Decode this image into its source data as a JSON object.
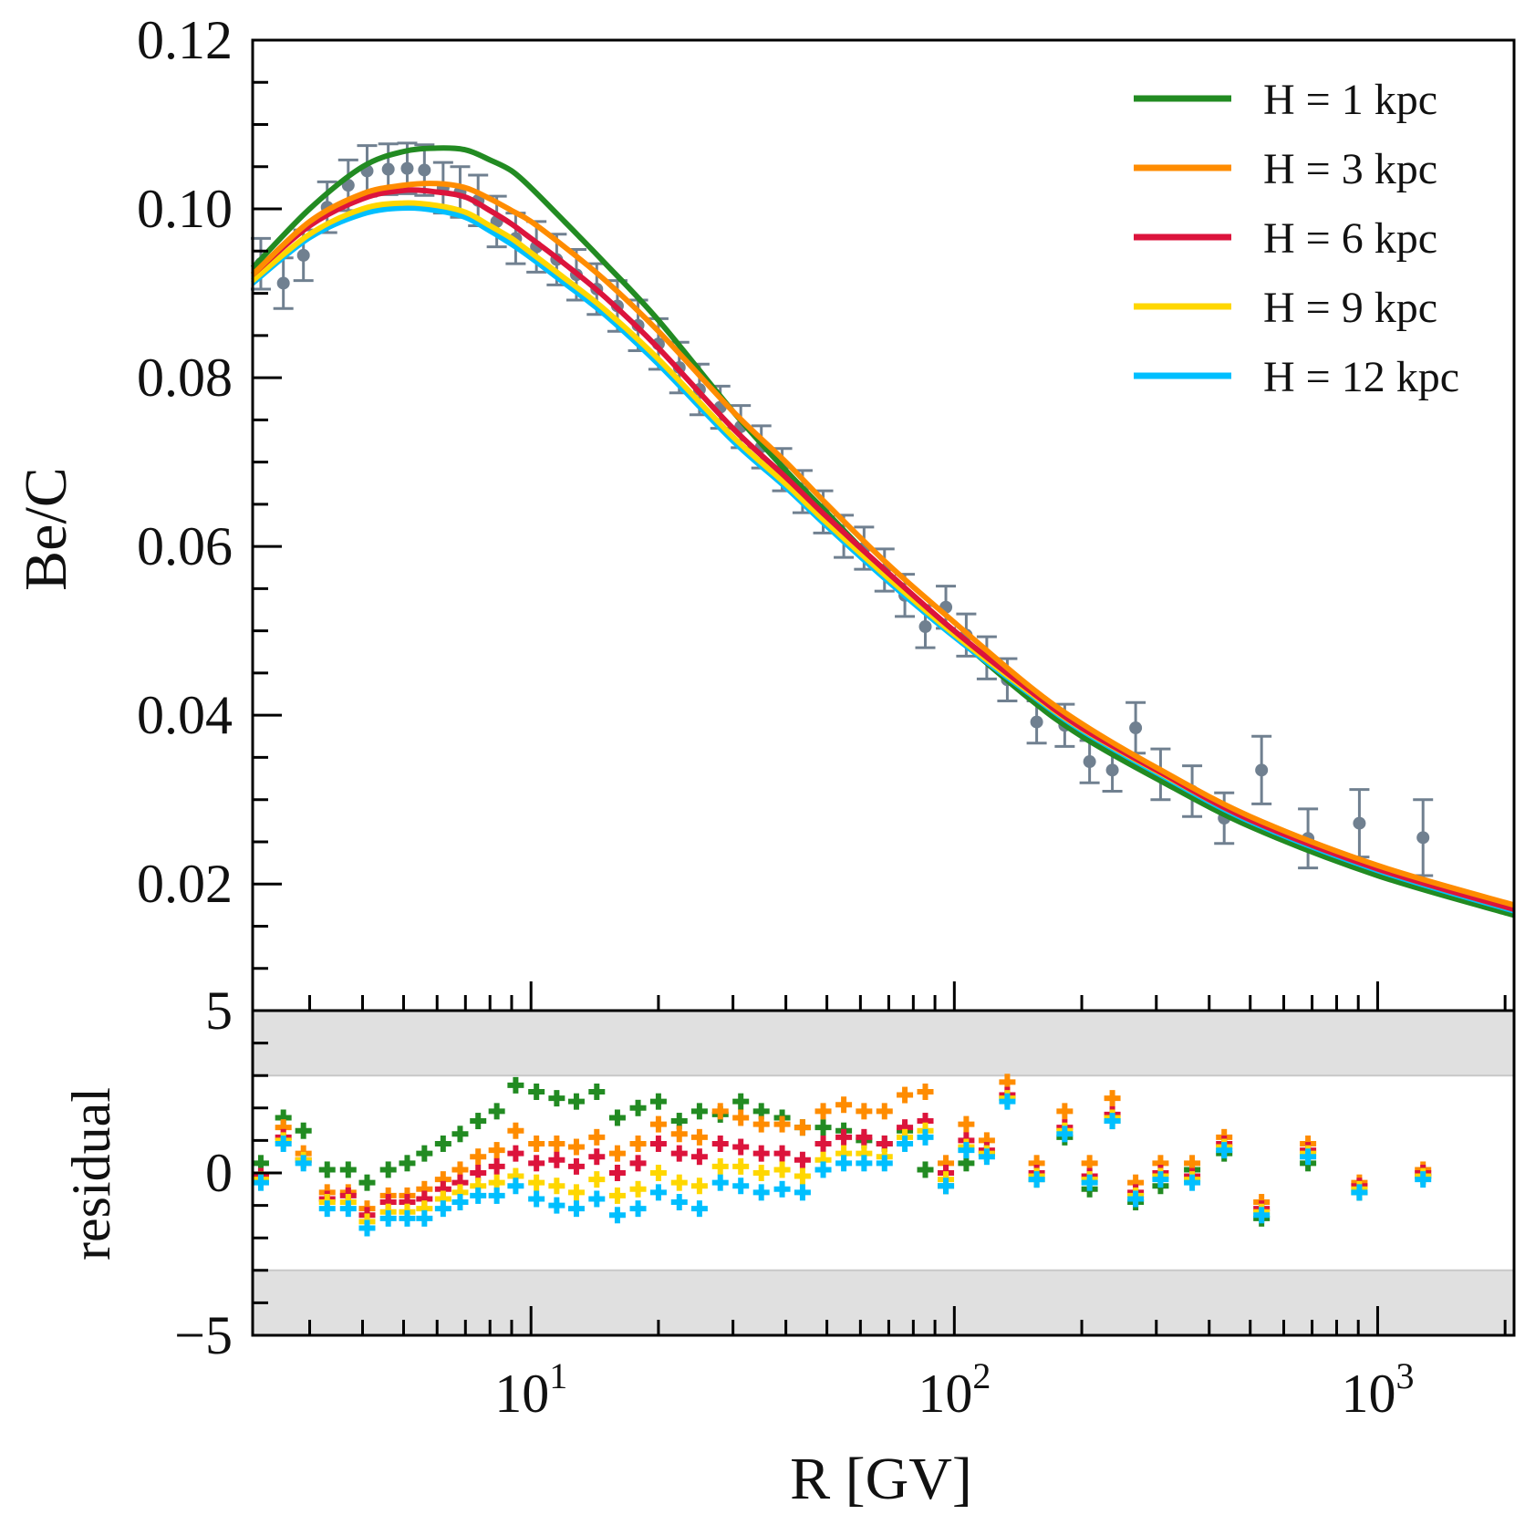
{
  "chart_data": {
    "type": "line",
    "x_scale": "log",
    "xlim": [
      2.2,
      2100
    ],
    "xlabel": "R [GV]",
    "x_tick_labels": [
      {
        "value": 10,
        "base": "10",
        "exp": "1"
      },
      {
        "value": 100,
        "base": "10",
        "exp": "2"
      },
      {
        "value": 1000,
        "base": "10",
        "exp": "3"
      }
    ],
    "top_panel": {
      "ylabel": "Be/C",
      "ylim": [
        0.005,
        0.12
      ],
      "y_tick_labels": [
        "0.02",
        "0.04",
        "0.06",
        "0.08",
        "0.10",
        "0.12"
      ],
      "y_tick_values": [
        0.02,
        0.04,
        0.06,
        0.08,
        0.1,
        0.12
      ],
      "data_color": "#708090",
      "data": {
        "x": [
          2.3,
          2.6,
          2.9,
          3.3,
          3.7,
          4.1,
          4.6,
          5.1,
          5.6,
          6.2,
          6.8,
          7.5,
          8.3,
          9.2,
          10.3,
          11.5,
          12.8,
          14.3,
          16.0,
          17.9,
          20.0,
          22.4,
          25.0,
          28.0,
          31.3,
          35.0,
          39.2,
          43.8,
          49.0,
          54.8,
          61.2,
          68.4,
          76.4,
          85.4,
          95.5,
          106.7,
          119.3,
          133.4,
          156.5,
          182.3,
          208.7,
          236.2,
          268.1,
          307.0,
          364.6,
          434.0,
          531.8,
          684.7,
          905.4,
          1280.0
        ],
        "y": [
          0.0935,
          0.0912,
          0.0945,
          0.1002,
          0.1028,
          0.1045,
          0.1047,
          0.1048,
          0.1046,
          0.1025,
          0.102,
          0.101,
          0.0985,
          0.0965,
          0.0955,
          0.094,
          0.0922,
          0.0905,
          0.0885,
          0.0862,
          0.084,
          0.0812,
          0.0786,
          0.0765,
          0.0742,
          0.0718,
          0.0691,
          0.0665,
          0.0641,
          0.0612,
          0.0598,
          0.0572,
          0.0542,
          0.0505,
          0.0528,
          0.0495,
          0.0468,
          0.0442,
          0.0392,
          0.0388,
          0.0345,
          0.0335,
          0.0385,
          0.033,
          0.031,
          0.0278,
          0.0335,
          0.0254,
          0.0272,
          0.0255
        ],
        "err": [
          0.003,
          0.003,
          0.003,
          0.003,
          0.003,
          0.003,
          0.003,
          0.003,
          0.003,
          0.003,
          0.003,
          0.003,
          0.003,
          0.003,
          0.003,
          0.003,
          0.003,
          0.003,
          0.003,
          0.003,
          0.003,
          0.003,
          0.003,
          0.0025,
          0.0025,
          0.0025,
          0.0025,
          0.0025,
          0.0025,
          0.0025,
          0.0025,
          0.0025,
          0.0025,
          0.0025,
          0.0025,
          0.0025,
          0.0025,
          0.0025,
          0.0025,
          0.0025,
          0.0025,
          0.0025,
          0.003,
          0.003,
          0.003,
          0.003,
          0.004,
          0.0035,
          0.004,
          0.0045
        ]
      },
      "legend_position": "top-right",
      "series": [
        {
          "name": "H = 1 kpc",
          "color": "#228b22",
          "x": [
            2.2,
            3.0,
            4.0,
            5.0,
            6.0,
            7.0,
            8.0,
            9.0,
            10.0,
            12.0,
            15.0,
            20.0,
            30.0,
            40.0,
            50.0,
            70.0,
            100.0,
            150.0,
            200.0,
            300.0,
            500.0,
            1000.0,
            2100.0
          ],
          "y": [
            0.093,
            0.1,
            0.105,
            0.1068,
            0.1072,
            0.107,
            0.1058,
            0.1045,
            0.1025,
            0.0985,
            0.0935,
            0.0868,
            0.076,
            0.069,
            0.064,
            0.0565,
            0.0495,
            0.042,
            0.0375,
            0.0325,
            0.0268,
            0.021,
            0.0163
          ]
        },
        {
          "name": "H = 3 kpc",
          "color": "#ff8c00",
          "x": [
            2.2,
            3.0,
            4.0,
            5.0,
            6.0,
            7.0,
            8.0,
            9.0,
            10.0,
            12.0,
            15.0,
            20.0,
            30.0,
            40.0,
            50.0,
            70.0,
            100.0,
            150.0,
            200.0,
            300.0,
            500.0,
            1000.0,
            2100.0
          ],
          "y": [
            0.0922,
            0.0985,
            0.1018,
            0.1028,
            0.103,
            0.1025,
            0.1012,
            0.0998,
            0.0985,
            0.0955,
            0.0915,
            0.0855,
            0.076,
            0.07,
            0.065,
            0.0578,
            0.051,
            0.0435,
            0.039,
            0.0338,
            0.028,
            0.0222,
            0.0175
          ]
        },
        {
          "name": "H = 6 kpc",
          "color": "#dc143c",
          "x": [
            2.2,
            3.0,
            4.0,
            5.0,
            6.0,
            7.0,
            8.0,
            9.0,
            10.0,
            12.0,
            15.0,
            20.0,
            30.0,
            40.0,
            50.0,
            70.0,
            100.0,
            150.0,
            200.0,
            300.0,
            500.0,
            1000.0,
            2100.0
          ],
          "y": [
            0.0922,
            0.098,
            0.1012,
            0.1022,
            0.102,
            0.1014,
            0.0998,
            0.0982,
            0.0965,
            0.0935,
            0.0895,
            0.0835,
            0.074,
            0.0682,
            0.0635,
            0.0568,
            0.05,
            0.043,
            0.0385,
            0.0335,
            0.0276,
            0.0218,
            0.017
          ]
        },
        {
          "name": "H = 9 kpc",
          "color": "#ffd700",
          "x": [
            2.2,
            3.0,
            4.0,
            5.0,
            6.0,
            7.0,
            8.0,
            9.0,
            10.0,
            12.0,
            15.0,
            20.0,
            30.0,
            40.0,
            50.0,
            70.0,
            100.0,
            150.0,
            200.0,
            300.0,
            500.0,
            1000.0,
            2100.0
          ],
          "y": [
            0.0915,
            0.097,
            0.1,
            0.1007,
            0.1004,
            0.0996,
            0.098,
            0.0965,
            0.0948,
            0.0918,
            0.088,
            0.0822,
            0.073,
            0.0674,
            0.0628,
            0.0562,
            0.0496,
            0.0428,
            0.0384,
            0.0334,
            0.0276,
            0.0218,
            0.017
          ]
        },
        {
          "name": "H = 12 kpc",
          "color": "#00bfff",
          "x": [
            2.2,
            3.0,
            4.0,
            5.0,
            6.0,
            7.0,
            8.0,
            9.0,
            10.0,
            12.0,
            15.0,
            20.0,
            30.0,
            40.0,
            50.0,
            70.0,
            100.0,
            150.0,
            200.0,
            300.0,
            500.0,
            1000.0,
            2100.0
          ],
          "y": [
            0.0912,
            0.0966,
            0.0994,
            0.1001,
            0.0998,
            0.099,
            0.0974,
            0.0958,
            0.0942,
            0.0912,
            0.0874,
            0.0816,
            0.0725,
            0.067,
            0.0624,
            0.0558,
            0.0493,
            0.0426,
            0.0382,
            0.0332,
            0.0274,
            0.0216,
            0.0168
          ]
        }
      ]
    },
    "bottom_panel": {
      "ylabel": "residual",
      "ylim": [
        -5,
        5
      ],
      "y_tick_labels": [
        "−5",
        "0",
        "5"
      ],
      "y_tick_values": [
        -5,
        0,
        5
      ],
      "shaded_bands": [
        [
          3,
          5
        ],
        [
          -5,
          -3
        ]
      ],
      "band_color": "#e0e0e0",
      "band_edge_color": "#c8c8c8",
      "residual_x": [
        2.3,
        2.6,
        2.9,
        3.3,
        3.7,
        4.1,
        4.6,
        5.1,
        5.6,
        6.2,
        6.8,
        7.5,
        8.3,
        9.2,
        10.3,
        11.5,
        12.8,
        14.3,
        16.0,
        17.9,
        20.0,
        22.4,
        25.0,
        28.0,
        31.3,
        35.0,
        39.2,
        43.8,
        49.0,
        54.8,
        61.2,
        68.4,
        76.4,
        85.4,
        95.5,
        106.7,
        119.3,
        133.4,
        156.5,
        182.3,
        208.7,
        236.2,
        268.1,
        307.0,
        364.6,
        434.0,
        531.8,
        684.7,
        905.4,
        1280.0
      ],
      "series": [
        {
          "name": "H = 1 kpc",
          "color": "#228b22",
          "y": [
            0.3,
            1.7,
            1.3,
            0.1,
            0.1,
            -0.3,
            0.1,
            0.3,
            0.6,
            0.9,
            1.2,
            1.6,
            1.9,
            2.7,
            2.5,
            2.3,
            2.2,
            2.5,
            1.7,
            2.0,
            2.2,
            1.6,
            1.9,
            1.8,
            2.2,
            1.9,
            1.7,
            1.4,
            1.4,
            1.3,
            1.0,
            0.9,
            1.3,
            0.1,
            -0.4,
            0.3,
            0.6,
            2.3,
            -0.2,
            1.1,
            -0.5,
            1.6,
            -0.9,
            -0.4,
            0.1,
            0.6,
            -1.4,
            0.3,
            -0.6,
            -0.1
          ]
        },
        {
          "name": "H = 3 kpc",
          "color": "#ff8c00",
          "y": [
            -0.1,
            1.4,
            0.6,
            -0.6,
            -0.6,
            -1.1,
            -0.7,
            -0.7,
            -0.5,
            -0.2,
            0.1,
            0.5,
            0.7,
            1.3,
            0.9,
            0.9,
            0.8,
            1.1,
            0.6,
            0.9,
            1.5,
            1.2,
            1.1,
            1.9,
            1.7,
            1.5,
            1.5,
            1.4,
            1.9,
            2.1,
            1.9,
            1.9,
            2.4,
            2.5,
            0.3,
            1.5,
            1.0,
            2.8,
            0.3,
            1.9,
            0.3,
            2.3,
            -0.3,
            0.3,
            0.3,
            1.1,
            -0.9,
            0.9,
            -0.3,
            0.1
          ]
        },
        {
          "name": "H = 6 kpc",
          "color": "#dc143c",
          "y": [
            -0.1,
            1.1,
            0.4,
            -0.8,
            -0.7,
            -1.3,
            -0.9,
            -0.9,
            -0.8,
            -0.5,
            -0.3,
            0.0,
            0.2,
            0.6,
            0.3,
            0.4,
            0.2,
            0.5,
            0.0,
            0.3,
            0.9,
            0.6,
            0.5,
            0.9,
            0.8,
            0.6,
            0.6,
            0.4,
            0.9,
            1.1,
            1.1,
            0.9,
            1.4,
            1.6,
            0.0,
            1.0,
            0.7,
            2.4,
            0.0,
            1.4,
            -0.1,
            1.8,
            -0.6,
            0.0,
            -0.1,
            0.9,
            -1.1,
            0.7,
            -0.4,
            0.0
          ]
        },
        {
          "name": "H = 9 kpc",
          "color": "#ffd700",
          "y": [
            -0.2,
            1.0,
            0.4,
            -0.9,
            -0.9,
            -1.5,
            -1.2,
            -1.2,
            -1.1,
            -0.8,
            -0.6,
            -0.4,
            -0.3,
            -0.1,
            -0.3,
            -0.4,
            -0.6,
            -0.2,
            -0.7,
            -0.5,
            0.0,
            -0.3,
            -0.4,
            0.2,
            0.2,
            0.0,
            0.1,
            -0.1,
            0.4,
            0.6,
            0.6,
            0.5,
            1.1,
            1.3,
            -0.2,
            0.8,
            0.6,
            2.3,
            -0.1,
            1.3,
            -0.2,
            1.7,
            -0.7,
            -0.1,
            -0.2,
            0.8,
            -1.2,
            0.6,
            -0.5,
            -0.1
          ]
        },
        {
          "name": "H = 12 kpc",
          "color": "#00bfff",
          "y": [
            -0.3,
            0.9,
            0.3,
            -1.1,
            -1.1,
            -1.7,
            -1.4,
            -1.4,
            -1.4,
            -1.1,
            -0.9,
            -0.7,
            -0.7,
            -0.4,
            -0.8,
            -1.0,
            -1.1,
            -0.8,
            -1.3,
            -1.1,
            -0.6,
            -0.9,
            -1.1,
            -0.3,
            -0.4,
            -0.6,
            -0.5,
            -0.6,
            0.1,
            0.3,
            0.3,
            0.3,
            0.9,
            1.1,
            -0.4,
            0.7,
            0.5,
            2.2,
            -0.2,
            1.2,
            -0.3,
            1.6,
            -0.8,
            -0.2,
            -0.3,
            0.7,
            -1.3,
            0.5,
            -0.6,
            -0.2
          ]
        }
      ]
    }
  }
}
